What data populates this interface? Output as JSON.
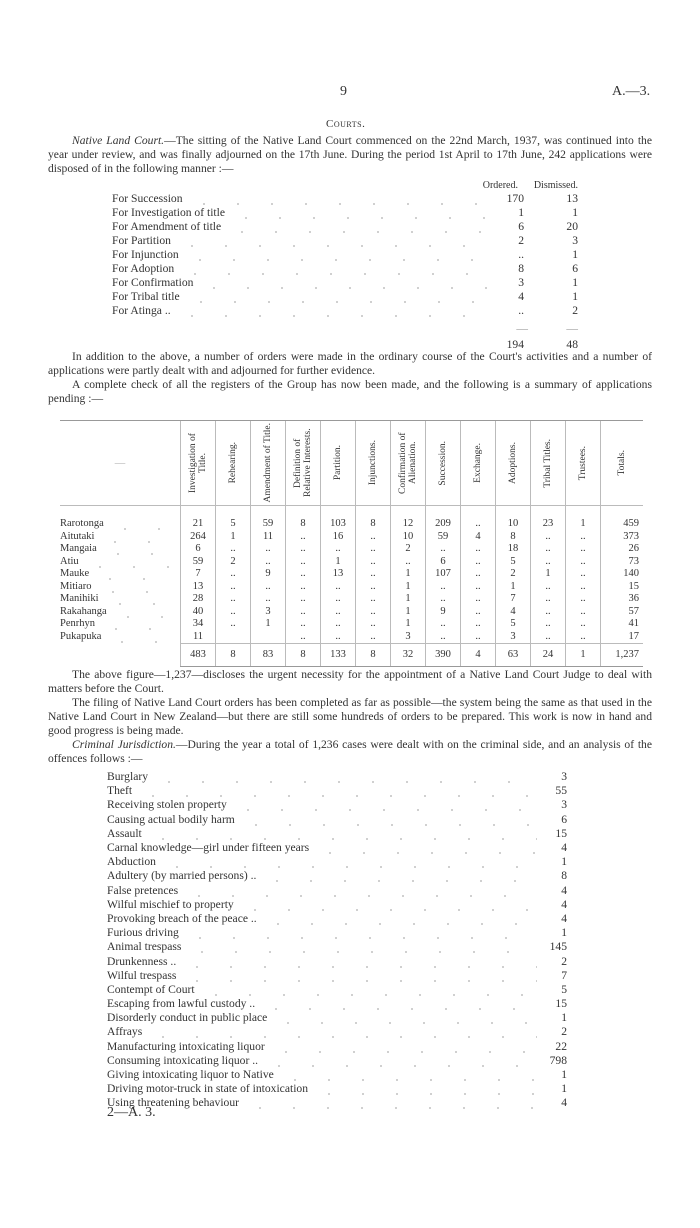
{
  "header": {
    "page_number": "9",
    "doc_ref": "A.—3."
  },
  "section_title": "Courts.",
  "intro": {
    "lead": "Native Land Court.",
    "text": "—The sitting of the Native Land Court commenced on the 22nd March, 1937, was continued into the year under review, and was finally adjourned on the 17th June. During the period 1st April to 17th June, 242 applications were disposed of in the following manner :—"
  },
  "applications_table": {
    "headers": [
      "Ordered.",
      "Dismissed."
    ],
    "rows": [
      {
        "label": "For Succession",
        "ordered": "170",
        "dismissed": "13"
      },
      {
        "label": "For Investigation of title",
        "ordered": "1",
        "dismissed": "1"
      },
      {
        "label": "For Amendment of title",
        "ordered": "6",
        "dismissed": "20"
      },
      {
        "label": "For Partition",
        "ordered": "2",
        "dismissed": "3"
      },
      {
        "label": "For Injunction",
        "ordered": "..",
        "dismissed": "1"
      },
      {
        "label": "For Adoption",
        "ordered": "8",
        "dismissed": "6"
      },
      {
        "label": "For Confirmation",
        "ordered": "3",
        "dismissed": "1"
      },
      {
        "label": "For Tribal title",
        "ordered": "4",
        "dismissed": "1"
      },
      {
        "label": "For Atinga ..",
        "ordered": "..",
        "dismissed": "2"
      }
    ],
    "rule": "—",
    "totals": {
      "ordered": "194",
      "dismissed": "48"
    }
  },
  "para2": "In addition to the above, a number of orders were made in the ordinary course of the Court's activities and a number of applications were partly dealt with and adjourned for further evidence.",
  "para3": "A complete check of all the registers of the Group has now been made, and the following is a summary of applications pending :—",
  "pending_table": {
    "stub_header": "—",
    "columns": [
      "Investigation of Title.",
      "Rehearing.",
      "Amendment of Title.",
      "Definition of Relative Interests.",
      "Partition.",
      "Injunctions.",
      "Confirmation of Alienation.",
      "Succession.",
      "Exchange.",
      "Adoptions.",
      "Tribal Titles.",
      "Trustees.",
      "Totals."
    ],
    "rows": [
      {
        "island": "Rarotonga",
        "values": [
          "21",
          "5",
          "59",
          "8",
          "103",
          "8",
          "12",
          "209",
          "..",
          "10",
          "23",
          "1",
          "459"
        ]
      },
      {
        "island": "Aitutaki",
        "values": [
          "264",
          "1",
          "11",
          "..",
          "16",
          "..",
          "10",
          "59",
          "4",
          "8",
          "..",
          "..",
          "373"
        ]
      },
      {
        "island": "Mangaia",
        "values": [
          "6",
          "..",
          "..",
          "..",
          "..",
          "..",
          "2",
          "..",
          "..",
          "18",
          "..",
          "..",
          "26"
        ]
      },
      {
        "island": "Atiu",
        "values": [
          "59",
          "2",
          "..",
          "..",
          "1",
          "..",
          "..",
          "6",
          "..",
          "5",
          "..",
          "..",
          "73"
        ]
      },
      {
        "island": "Mauke",
        "values": [
          "7",
          "..",
          "9",
          "..",
          "13",
          "..",
          "1",
          "107",
          "..",
          "2",
          "1",
          "..",
          "140"
        ]
      },
      {
        "island": "Mitiaro",
        "values": [
          "13",
          "..",
          "..",
          "..",
          "..",
          "..",
          "1",
          "..",
          "..",
          "1",
          "..",
          "..",
          "15"
        ]
      },
      {
        "island": "Manihiki",
        "values": [
          "28",
          "..",
          "..",
          "..",
          "..",
          "..",
          "1",
          "..",
          "..",
          "7",
          "..",
          "..",
          "36"
        ]
      },
      {
        "island": "Rakahanga",
        "values": [
          "40",
          "..",
          "3",
          "..",
          "..",
          "..",
          "1",
          "9",
          "..",
          "4",
          "..",
          "..",
          "57"
        ]
      },
      {
        "island": "Penrhyn",
        "values": [
          "34",
          "..",
          "1",
          "..",
          "..",
          "..",
          "1",
          "..",
          "..",
          "5",
          "..",
          "..",
          "41"
        ]
      },
      {
        "island": "Pukapuka",
        "values": [
          "11",
          "",
          "",
          "..",
          "..",
          "..",
          "3",
          "..",
          "..",
          "3",
          "..",
          "..",
          "17"
        ]
      }
    ],
    "totals": [
      "483",
      "8",
      "83",
      "8",
      "133",
      "8",
      "32",
      "390",
      "4",
      "63",
      "24",
      "1",
      "1,237"
    ]
  },
  "para4": "The above figure—1,237—discloses the urgent necessity for the appointment of a Native Land Court Judge to deal with matters before the Court.",
  "para5": "The filing of Native Land Court orders has been completed as far as possible—the system being the same as that used in the Native Land Court in New Zealand—but there are still some hundreds of orders to be prepared. This work is now in hand and good progress is being made.",
  "para6": {
    "lead": "Criminal Jurisdiction.",
    "text": "—During the year a total of 1,236 cases were dealt with on the criminal side, and an analysis of the offences follows :—"
  },
  "offences": [
    {
      "label": "Burglary",
      "count": "3"
    },
    {
      "label": "Theft",
      "count": "55"
    },
    {
      "label": "Receiving stolen property",
      "count": "3"
    },
    {
      "label": "Causing actual bodily harm",
      "count": "6"
    },
    {
      "label": "Assault",
      "count": "15"
    },
    {
      "label": "Carnal knowledge—girl under fifteen years",
      "count": "4"
    },
    {
      "label": "Abduction",
      "count": "1"
    },
    {
      "label": "Adultery (by married persons) ..",
      "count": "8"
    },
    {
      "label": "False pretences",
      "count": "4"
    },
    {
      "label": "Wilful mischief to property",
      "count": "4"
    },
    {
      "label": "Provoking breach of the peace ..",
      "count": "4"
    },
    {
      "label": "Furious driving",
      "count": "1"
    },
    {
      "label": "Animal trespass",
      "count": "145"
    },
    {
      "label": "Drunkenness ..",
      "count": "2"
    },
    {
      "label": "Wilful trespass",
      "count": "7"
    },
    {
      "label": "Contempt of Court",
      "count": "5"
    },
    {
      "label": "Escaping from lawful custody ..",
      "count": "15"
    },
    {
      "label": "Disorderly conduct in public place",
      "count": "1"
    },
    {
      "label": "Affrays",
      "count": "2"
    },
    {
      "label": "Manufacturing intoxicating liquor",
      "count": "22"
    },
    {
      "label": "Consuming intoxicating liquor ..",
      "count": "798"
    },
    {
      "label": "Giving intoxicating liquor to Native",
      "count": "1"
    },
    {
      "label": "Driving motor-truck in state of intoxication",
      "count": "1"
    },
    {
      "label": "Using threatening behaviour",
      "count": "4"
    }
  ],
  "footer": "2—A. 3."
}
